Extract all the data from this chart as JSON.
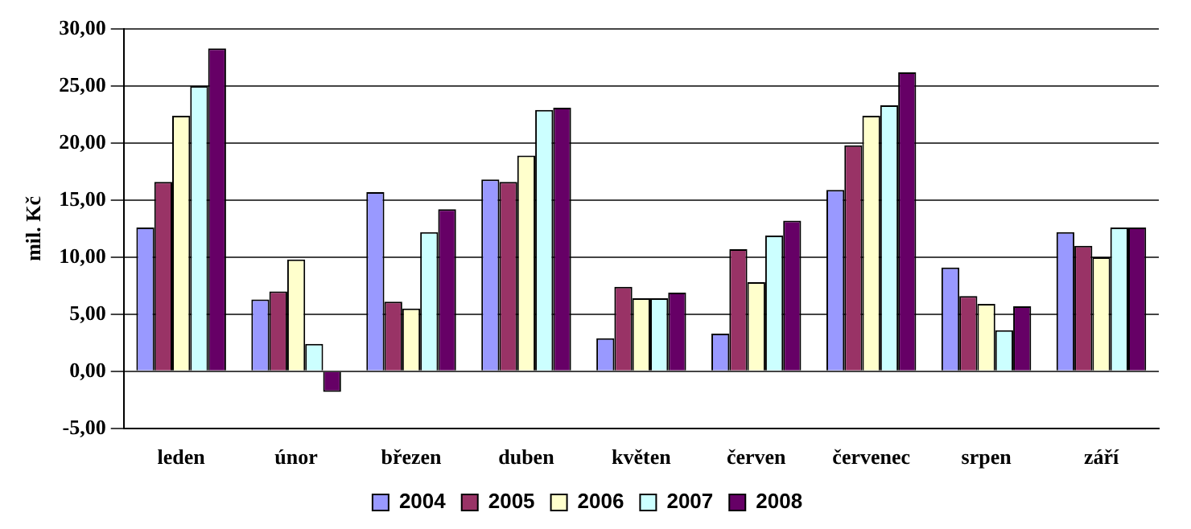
{
  "chart_data": {
    "type": "bar",
    "ylabel": "mil. Kč",
    "categories": [
      "leden",
      "únor",
      "březen",
      "duben",
      "květen",
      "červen",
      "červenec",
      "srpen",
      "září"
    ],
    "series": [
      {
        "name": "2004",
        "color": "#9999ff",
        "values": [
          12.6,
          6.3,
          15.7,
          16.8,
          2.9,
          3.3,
          15.9,
          9.1,
          12.2
        ]
      },
      {
        "name": "2005",
        "color": "#993366",
        "values": [
          16.6,
          7.0,
          6.1,
          16.6,
          7.4,
          10.7,
          19.8,
          6.6,
          11.0
        ]
      },
      {
        "name": "2006",
        "color": "#ffffcc",
        "values": [
          22.4,
          9.8,
          5.5,
          18.9,
          6.4,
          7.8,
          22.4,
          5.9,
          10.0
        ]
      },
      {
        "name": "2007",
        "color": "#ccffff",
        "values": [
          25.0,
          2.4,
          12.2,
          22.9,
          6.4,
          11.9,
          23.3,
          3.6,
          12.6
        ]
      },
      {
        "name": "2008",
        "color": "#660066",
        "values": [
          28.3,
          -1.8,
          14.2,
          23.1,
          6.9,
          13.2,
          26.2,
          5.7,
          12.6
        ]
      }
    ],
    "ylim": [
      -5,
      30
    ],
    "yticks": [
      {
        "value": -5,
        "label": "-5,00"
      },
      {
        "value": 0,
        "label": "0,00"
      },
      {
        "value": 5,
        "label": "5,00"
      },
      {
        "value": 10,
        "label": "10,00"
      },
      {
        "value": 15,
        "label": "15,00"
      },
      {
        "value": 20,
        "label": "20,00"
      },
      {
        "value": 25,
        "label": "25,00"
      },
      {
        "value": 30,
        "label": "30,00"
      }
    ],
    "grid": "y",
    "legend": "bottom"
  }
}
